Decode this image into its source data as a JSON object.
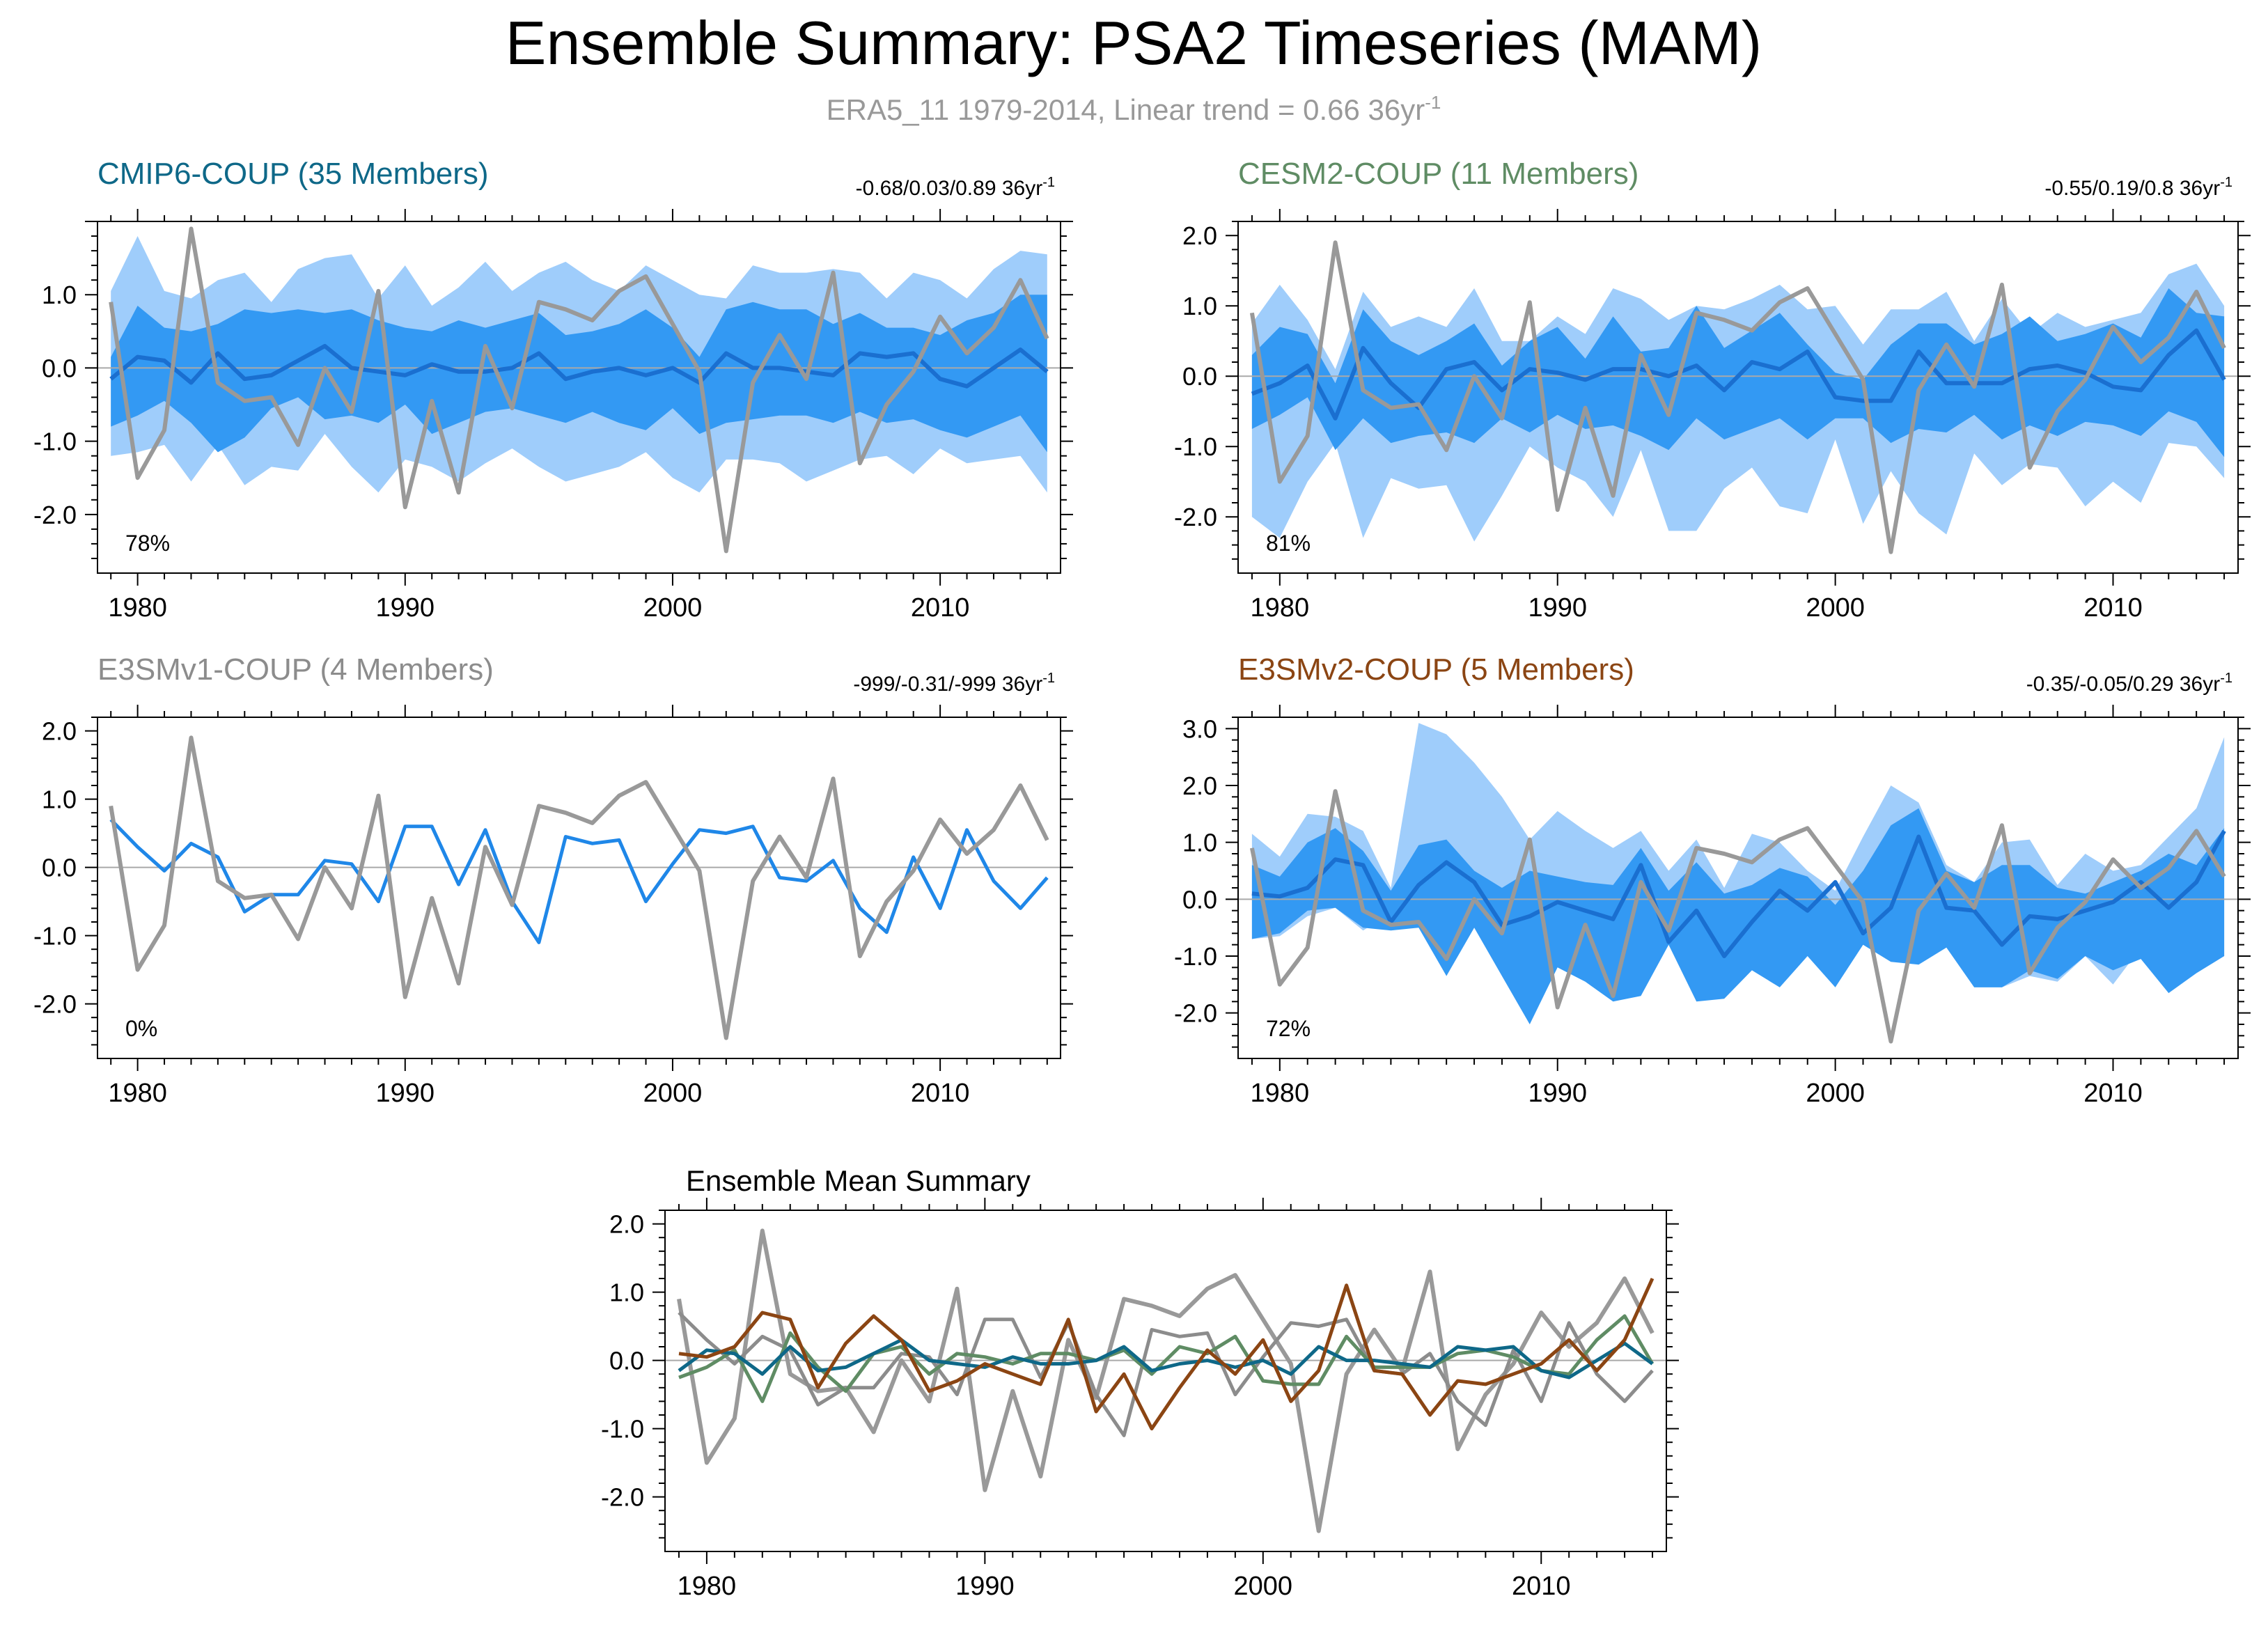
{
  "figure": {
    "title": "Ensemble Summary: PSA2 Timeseries (MAM)",
    "subtitle_main": "ERA5_11 1979-2014, Linear trend = 0.66 36yr",
    "subtitle_sup": "-1"
  },
  "colors": {
    "obs": "#999999",
    "band_outer": "#9fcdfb",
    "band_inner": "#3399f3",
    "zero_line": "#a9a9a9",
    "single_member": "#1f87e8",
    "cmip6": "#0e6888",
    "cesm2": "#5f8c64",
    "e3smv1": "#8c8c8c",
    "e3smv2": "#8b4513"
  },
  "chart_data": [
    {
      "id": "cmip6",
      "type": "area",
      "title": "CMIP6-COUP (35 Members)",
      "title_color": "#0e6888",
      "stats": "-0.68/0.03/0.89 36yr",
      "stats_sup": "-1",
      "percent": "78%",
      "xlim": [
        1978.5,
        2014.5
      ],
      "ylim": [
        -2.8,
        2.0
      ],
      "yticks": [
        -2.0,
        -1.0,
        0.0,
        1.0
      ],
      "ytick_labels": [
        "-2.0",
        "-1.0",
        "0.0",
        "1.0"
      ],
      "xticks": [
        1980,
        1990,
        2000,
        2010
      ],
      "xtick_labels": [
        "1980",
        "1990",
        "2000",
        "2010"
      ],
      "outer_upper": [
        1.05,
        1.8,
        1.05,
        0.95,
        1.2,
        1.3,
        0.9,
        1.35,
        1.5,
        1.55,
        0.95,
        1.4,
        0.85,
        1.1,
        1.45,
        1.05,
        1.3,
        1.45,
        1.2,
        1.05,
        1.4,
        1.2,
        1.0,
        0.95,
        1.4,
        1.3,
        1.3,
        1.35,
        1.3,
        0.95,
        1.3,
        1.2,
        0.95,
        1.35,
        1.6,
        1.55
      ],
      "outer_lower": [
        -1.2,
        -1.15,
        -1.05,
        -1.55,
        -1.05,
        -1.6,
        -1.35,
        -1.4,
        -0.9,
        -1.35,
        -1.7,
        -1.25,
        -1.35,
        -1.55,
        -1.3,
        -1.1,
        -1.35,
        -1.55,
        -1.45,
        -1.35,
        -1.15,
        -1.5,
        -1.7,
        -1.25,
        -1.25,
        -1.3,
        -1.55,
        -1.4,
        -1.25,
        -1.2,
        -1.45,
        -1.1,
        -1.3,
        -1.25,
        -1.2,
        -1.7
      ],
      "inner_upper": [
        0.15,
        0.85,
        0.55,
        0.5,
        0.6,
        0.8,
        0.75,
        0.8,
        0.75,
        0.8,
        0.65,
        0.55,
        0.5,
        0.65,
        0.55,
        0.65,
        0.75,
        0.45,
        0.5,
        0.6,
        0.8,
        0.55,
        0.15,
        0.8,
        0.9,
        0.8,
        0.8,
        0.6,
        0.75,
        0.55,
        0.55,
        0.45,
        0.65,
        0.75,
        1.0,
        1.0
      ],
      "inner_lower": [
        -0.8,
        -0.65,
        -0.45,
        -0.75,
        -1.15,
        -0.95,
        -0.55,
        -0.4,
        -0.7,
        -0.65,
        -0.75,
        -0.5,
        -0.9,
        -0.75,
        -0.6,
        -0.55,
        -0.65,
        -0.75,
        -0.6,
        -0.75,
        -0.85,
        -0.55,
        -0.9,
        -0.75,
        -0.7,
        -0.65,
        -0.65,
        -0.75,
        -0.6,
        -0.75,
        -0.7,
        -0.85,
        -0.95,
        -0.8,
        -0.65,
        -1.15
      ],
      "model_mean": [
        -0.15,
        0.15,
        0.1,
        -0.2,
        0.2,
        -0.15,
        -0.1,
        0.1,
        0.3,
        0.0,
        -0.05,
        -0.1,
        0.05,
        -0.05,
        -0.05,
        0.0,
        0.2,
        -0.15,
        -0.05,
        0.0,
        -0.1,
        0.0,
        -0.2,
        0.2,
        0.0,
        0.0,
        -0.05,
        -0.1,
        0.2,
        0.15,
        0.2,
        -0.15,
        -0.25,
        0.0,
        0.25,
        -0.05
      ],
      "model_color": "#1f87e8"
    },
    {
      "id": "cesm2",
      "type": "area",
      "title": "CESM2-COUP (11 Members)",
      "title_color": "#5f8c64",
      "stats": "-0.55/0.19/0.8 36yr",
      "stats_sup": "-1",
      "percent": "81%",
      "xlim": [
        1978.5,
        2014.5
      ],
      "ylim": [
        -2.8,
        2.2
      ],
      "yticks": [
        -2.0,
        -1.0,
        0.0,
        1.0,
        2.0
      ],
      "ytick_labels": [
        "-2.0",
        "-1.0",
        "0.0",
        "1.0",
        "2.0"
      ],
      "xticks": [
        1980,
        1990,
        2000,
        2010
      ],
      "xtick_labels": [
        "1980",
        "1990",
        "2000",
        "2010"
      ],
      "outer_upper": [
        0.75,
        1.3,
        0.8,
        0.1,
        1.2,
        0.7,
        0.85,
        0.7,
        1.25,
        0.5,
        0.5,
        0.85,
        0.6,
        1.25,
        1.1,
        0.8,
        1.0,
        0.95,
        1.1,
        1.3,
        0.95,
        1.0,
        0.45,
        0.95,
        0.95,
        1.2,
        0.5,
        1.1,
        0.6,
        0.9,
        0.7,
        0.8,
        0.9,
        1.45,
        1.6,
        1.0
      ],
      "outer_lower": [
        -2.0,
        -2.3,
        -1.5,
        -0.95,
        -2.3,
        -1.45,
        -1.6,
        -1.55,
        -2.35,
        -1.7,
        -1.0,
        -1.3,
        -1.5,
        -2.0,
        -1.05,
        -2.2,
        -2.2,
        -1.6,
        -1.3,
        -1.85,
        -1.95,
        -0.9,
        -2.1,
        -1.35,
        -1.95,
        -2.25,
        -1.1,
        -1.55,
        -1.25,
        -1.3,
        -1.85,
        -1.5,
        -1.8,
        -0.95,
        -1.0,
        -1.45
      ],
      "inner_upper": [
        0.3,
        0.7,
        0.6,
        -0.1,
        0.95,
        0.5,
        0.3,
        0.5,
        0.75,
        0.15,
        0.5,
        0.7,
        0.25,
        0.85,
        0.35,
        0.4,
        1.0,
        0.4,
        0.65,
        0.9,
        0.45,
        0.05,
        -0.05,
        0.45,
        0.75,
        0.75,
        0.45,
        0.6,
        0.85,
        0.5,
        0.6,
        0.75,
        0.55,
        1.25,
        0.9,
        0.85
      ],
      "inner_lower": [
        -0.75,
        -0.55,
        -0.3,
        -1.05,
        -0.6,
        -0.95,
        -0.85,
        -0.8,
        -0.95,
        -0.6,
        -0.8,
        -0.55,
        -0.75,
        -0.7,
        -0.85,
        -1.05,
        -0.6,
        -0.9,
        -0.75,
        -0.6,
        -0.9,
        -0.6,
        -0.6,
        -0.95,
        -0.75,
        -0.8,
        -0.55,
        -0.9,
        -0.7,
        -0.85,
        -0.65,
        -0.7,
        -0.85,
        -0.5,
        -0.65,
        -1.15
      ],
      "model_mean": [
        -0.25,
        -0.1,
        0.15,
        -0.6,
        0.4,
        -0.1,
        -0.45,
        0.1,
        0.2,
        -0.2,
        0.1,
        0.05,
        -0.05,
        0.1,
        0.1,
        0.0,
        0.15,
        -0.2,
        0.2,
        0.1,
        0.35,
        -0.3,
        -0.35,
        -0.35,
        0.35,
        -0.1,
        -0.1,
        -0.1,
        0.1,
        0.15,
        0.05,
        -0.15,
        -0.2,
        0.3,
        0.65,
        -0.05
      ],
      "model_color": "#1f87e8"
    },
    {
      "id": "e3smv1",
      "type": "line",
      "title": "E3SMv1-COUP (4 Members)",
      "title_color": "#8c8c8c",
      "stats": "-999/-0.31/-999 36yr",
      "stats_sup": "-1",
      "percent": "0%",
      "xlim": [
        1978.5,
        2014.5
      ],
      "ylim": [
        -2.8,
        2.2
      ],
      "yticks": [
        -2.0,
        -1.0,
        0.0,
        1.0,
        2.0
      ],
      "ytick_labels": [
        "-2.0",
        "-1.0",
        "0.0",
        "1.0",
        "2.0"
      ],
      "xticks": [
        1980,
        1990,
        2000,
        2010
      ],
      "xtick_labels": [
        "1980",
        "1990",
        "2000",
        "2010"
      ],
      "model_mean": [
        0.7,
        0.3,
        -0.05,
        0.35,
        0.15,
        -0.65,
        -0.4,
        -0.4,
        0.1,
        0.05,
        -0.5,
        0.6,
        0.6,
        -0.25,
        0.55,
        -0.5,
        -1.1,
        0.45,
        0.35,
        0.4,
        -0.5,
        0.05,
        0.55,
        0.5,
        0.6,
        -0.15,
        -0.2,
        0.1,
        -0.6,
        -0.95,
        0.15,
        -0.6,
        0.55,
        -0.2,
        -0.6,
        -0.15
      ],
      "model_color": "#1f87e8"
    },
    {
      "id": "e3smv2",
      "type": "area",
      "title": "E3SMv2-COUP (5 Members)",
      "title_color": "#8b4513",
      "stats": "-0.35/-0.05/0.29 36yr",
      "stats_sup": "-1",
      "percent": "72%",
      "xlim": [
        1978.5,
        2014.5
      ],
      "ylim": [
        -2.8,
        3.2
      ],
      "yticks": [
        -2.0,
        -1.0,
        0.0,
        1.0,
        2.0,
        3.0
      ],
      "ytick_labels": [
        "-2.0",
        "-1.0",
        "0.0",
        "1.0",
        "2.0",
        "3.0"
      ],
      "xticks": [
        1980,
        1990,
        2000,
        2010
      ],
      "xtick_labels": [
        "1980",
        "1990",
        "2000",
        "2010"
      ],
      "outer_upper": [
        1.15,
        0.75,
        1.5,
        1.45,
        1.2,
        0.2,
        3.1,
        2.9,
        2.4,
        1.8,
        1.05,
        1.55,
        1.2,
        0.9,
        1.2,
        0.5,
        1.05,
        0.2,
        1.15,
        1.0,
        0.5,
        0.15,
        1.1,
        2.0,
        1.7,
        0.6,
        0.3,
        1.0,
        1.05,
        0.25,
        0.8,
        0.5,
        0.6,
        1.1,
        1.6,
        2.85
      ],
      "outer_lower": [
        -0.7,
        -0.65,
        -0.3,
        -0.15,
        -0.55,
        -0.25,
        -0.45,
        -1.0,
        -0.4,
        -1.0,
        -1.25,
        -0.8,
        -1.0,
        -0.7,
        -1.6,
        -0.8,
        -1.2,
        -0.3,
        -1.05,
        -0.85,
        -0.6,
        -1.5,
        -0.6,
        -0.9,
        -1.15,
        -0.75,
        -1.2,
        -1.55,
        -1.35,
        -1.45,
        -1.0,
        -1.5,
        -0.85,
        -1.6,
        -1.25,
        -1.0
      ],
      "inner_upper": [
        0.6,
        0.4,
        1.0,
        1.25,
        0.85,
        0.15,
        0.95,
        1.05,
        0.5,
        0.2,
        0.5,
        0.4,
        0.3,
        0.25,
        0.9,
        0.15,
        0.65,
        0.1,
        0.25,
        0.55,
        0.4,
        -0.1,
        0.5,
        1.3,
        1.6,
        0.5,
        0.3,
        0.6,
        0.6,
        0.2,
        0.1,
        0.3,
        0.5,
        0.8,
        0.6,
        1.25
      ],
      "inner_lower": [
        -0.7,
        -0.6,
        -0.2,
        -0.15,
        -0.5,
        -0.55,
        -0.5,
        -1.35,
        -0.5,
        -1.35,
        -2.2,
        -1.2,
        -1.45,
        -1.8,
        -1.7,
        -0.8,
        -1.8,
        -1.75,
        -1.25,
        -1.55,
        -1.0,
        -1.55,
        -0.8,
        -1.1,
        -1.15,
        -0.85,
        -1.55,
        -1.55,
        -1.25,
        -1.4,
        -1.0,
        -1.25,
        -1.05,
        -1.65,
        -1.3,
        -1.0
      ],
      "model_mean": [
        0.1,
        0.05,
        0.2,
        0.7,
        0.6,
        -0.4,
        0.25,
        0.65,
        0.3,
        -0.45,
        -0.3,
        -0.05,
        -0.2,
        -0.35,
        0.6,
        -0.75,
        -0.2,
        -1.0,
        -0.4,
        0.15,
        -0.2,
        0.3,
        -0.6,
        -0.15,
        1.1,
        -0.15,
        -0.2,
        -0.8,
        -0.3,
        -0.35,
        -0.2,
        -0.05,
        0.3,
        -0.15,
        0.3,
        1.2
      ],
      "model_color": "#1f87e8"
    },
    {
      "id": "mean-summary",
      "type": "line",
      "title": "Ensemble Mean Summary",
      "title_color": "#000000",
      "xlim": [
        1978.5,
        2014.5
      ],
      "ylim": [
        -2.8,
        2.2
      ],
      "yticks": [
        -2.0,
        -1.0,
        0.0,
        1.0,
        2.0
      ],
      "ytick_labels": [
        "-2.0",
        "-1.0",
        "0.0",
        "1.0",
        "2.0"
      ],
      "xticks": [
        1980,
        1990,
        2000,
        2010
      ],
      "xtick_labels": [
        "1980",
        "1990",
        "2000",
        "2010"
      ]
    }
  ],
  "obs_series": {
    "name": "ERA5_11",
    "years": [
      1979,
      1980,
      1981,
      1982,
      1983,
      1984,
      1985,
      1986,
      1987,
      1988,
      1989,
      1990,
      1991,
      1992,
      1993,
      1994,
      1995,
      1996,
      1997,
      1998,
      1999,
      2000,
      2001,
      2002,
      2003,
      2004,
      2005,
      2006,
      2007,
      2008,
      2009,
      2010,
      2011,
      2012,
      2013,
      2014
    ],
    "values": [
      0.9,
      -1.5,
      -0.85,
      1.9,
      -0.2,
      -0.45,
      -0.4,
      -1.05,
      0.0,
      -0.6,
      1.05,
      -1.9,
      -0.45,
      -1.7,
      0.3,
      -0.55,
      0.9,
      0.8,
      0.65,
      1.05,
      1.25,
      0.6,
      -0.05,
      -2.5,
      -0.2,
      0.45,
      -0.15,
      1.3,
      -1.3,
      -0.5,
      -0.05,
      0.7,
      0.2,
      0.55,
      1.2,
      0.4
    ]
  }
}
